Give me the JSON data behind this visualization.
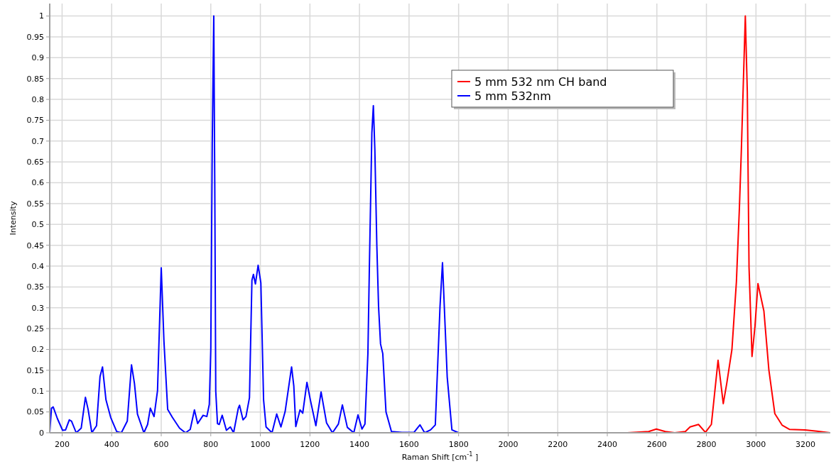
{
  "chart_data": {
    "type": "line",
    "xlabel": "Raman Shift [cm$^{-1}$ ]",
    "ylabel": "Intensity",
    "xlim": [
      150,
      3300
    ],
    "xticks": [
      200,
      400,
      600,
      800,
      1000,
      1200,
      1400,
      1600,
      1800,
      2000,
      2200,
      2400,
      2600,
      2800,
      3000,
      3200
    ],
    "ylim": [
      0,
      1.03
    ],
    "yticks": [
      0,
      0.05,
      0.1,
      0.15,
      0.2,
      0.25,
      0.3,
      0.35,
      0.4,
      0.45,
      0.5,
      0.55,
      0.6,
      0.65,
      0.7,
      0.75,
      0.8,
      0.85,
      0.9,
      0.95,
      1
    ],
    "grid": true,
    "legend": "top",
    "line_style": "solid",
    "marker": "none",
    "series": [
      {
        "name": "5 mm 532 nm CH band",
        "color": "#ff0000",
        "x": [
          2481,
          2567,
          2598,
          2634,
          2672,
          2715,
          2734,
          2768,
          2796,
          2820,
          2847,
          2868,
          2882,
          2903,
          2921,
          2933,
          2941,
          2957,
          2965,
          2972,
          2984,
          2996,
          3008,
          3032,
          3052,
          3076,
          3106,
          3136,
          3198,
          3246,
          3299
        ],
        "values": [
          0,
          0.003,
          0.009,
          0.003,
          0,
          0.003,
          0.014,
          0.02,
          0.001,
          0.02,
          0.174,
          0.07,
          0.118,
          0.2,
          0.362,
          0.538,
          0.678,
          1.0,
          0.819,
          0.397,
          0.183,
          0.256,
          0.358,
          0.292,
          0.151,
          0.046,
          0.018,
          0.008,
          0.007,
          0.004,
          0
        ]
      },
      {
        "name": "5 mm 532nm",
        "color": "#0000ff",
        "x": [
          150,
          157,
          164,
          181,
          202,
          214,
          229,
          238,
          257,
          277,
          294,
          305,
          320,
          339,
          353,
          363,
          377,
          396,
          420,
          439,
          463,
          480,
          492,
          504,
          530,
          545,
          556,
          571,
          585,
          600,
          611,
          626,
          645,
          674,
          698,
          717,
          734,
          747,
          769,
          784,
          794,
          800,
          806,
          812,
          816,
          820,
          827,
          834,
          846,
          863,
          879,
          892,
          911,
          916,
          930,
          942,
          956,
          966,
          972,
          980,
          991,
          1002,
          1013,
          1023,
          1047,
          1066,
          1083,
          1100,
          1126,
          1135,
          1143,
          1160,
          1171,
          1188,
          1202,
          1224,
          1245,
          1267,
          1291,
          1315,
          1331,
          1351,
          1377,
          1394,
          1410,
          1422,
          1434,
          1440,
          1450,
          1456,
          1462,
          1470,
          1477,
          1485,
          1494,
          1507,
          1529,
          1572,
          1620,
          1644,
          1663,
          1687,
          1706,
          1725,
          1735,
          1754,
          1773,
          1800
        ],
        "values": [
          0,
          0.059,
          0.062,
          0.034,
          0.006,
          0.007,
          0.031,
          0.028,
          0,
          0.011,
          0.085,
          0.056,
          0,
          0.017,
          0.135,
          0.158,
          0.079,
          0.037,
          0.003,
          0,
          0.028,
          0.163,
          0.118,
          0.045,
          0,
          0.02,
          0.059,
          0.039,
          0.101,
          0.396,
          0.219,
          0.056,
          0.037,
          0.011,
          0,
          0.008,
          0.055,
          0.022,
          0.042,
          0.039,
          0.068,
          0.2,
          0.7,
          1.0,
          0.6,
          0.1,
          0.022,
          0.02,
          0.042,
          0.006,
          0.014,
          0,
          0.059,
          0.066,
          0.031,
          0.039,
          0.084,
          0.366,
          0.38,
          0.357,
          0.402,
          0.36,
          0.079,
          0.014,
          0,
          0.045,
          0.014,
          0.051,
          0.158,
          0.112,
          0.015,
          0.055,
          0.047,
          0.121,
          0.078,
          0.017,
          0.098,
          0.024,
          0,
          0.021,
          0.067,
          0.013,
          0,
          0.043,
          0.009,
          0.021,
          0.19,
          0.4,
          0.72,
          0.785,
          0.68,
          0.45,
          0.303,
          0.213,
          0.19,
          0.05,
          0.003,
          0.001,
          0.001,
          0.019,
          0,
          0.007,
          0.019,
          0.303,
          0.408,
          0.134,
          0.007,
          0
        ]
      }
    ]
  }
}
